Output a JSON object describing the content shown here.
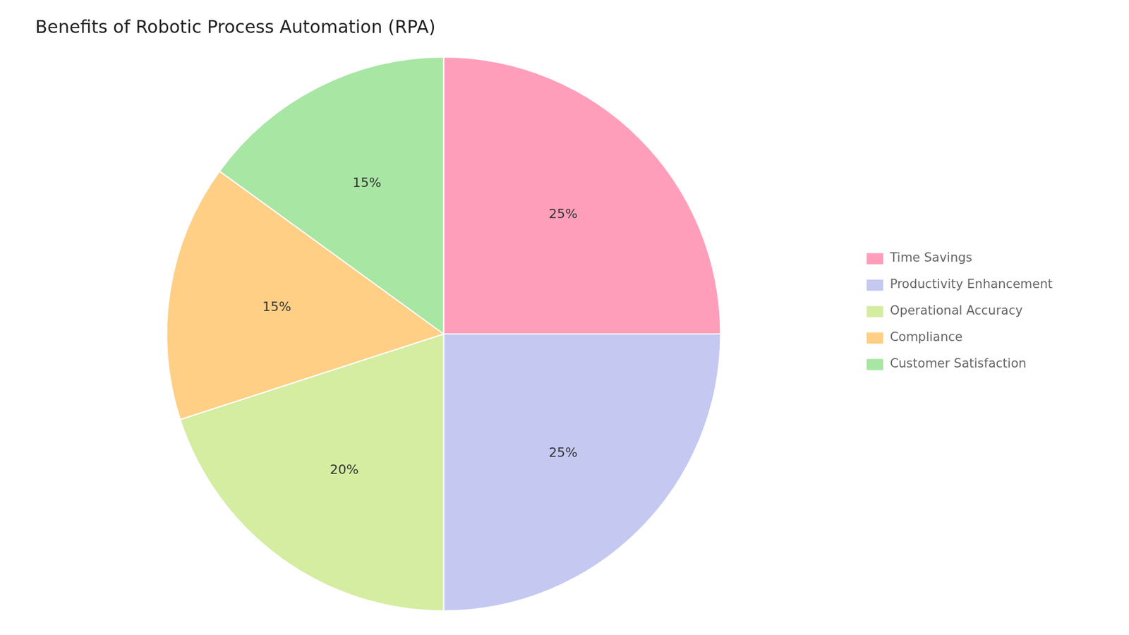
{
  "chart_data": {
    "type": "pie",
    "title": "Benefits of Robotic Process Automation (RPA)",
    "categories": [
      "Time Savings",
      "Productivity Enhancement",
      "Operational Accuracy",
      "Compliance",
      "Customer Satisfaction"
    ],
    "values": [
      25,
      25,
      20,
      15,
      15
    ],
    "value_labels": [
      "25%",
      "25%",
      "20%",
      "15%",
      "15%"
    ],
    "colors": [
      "#FF9EBB",
      "#C5C8F0",
      "#D4EDA0",
      "#FFCF85",
      "#A8E6A3"
    ],
    "data_labels": true,
    "legend": "right"
  }
}
